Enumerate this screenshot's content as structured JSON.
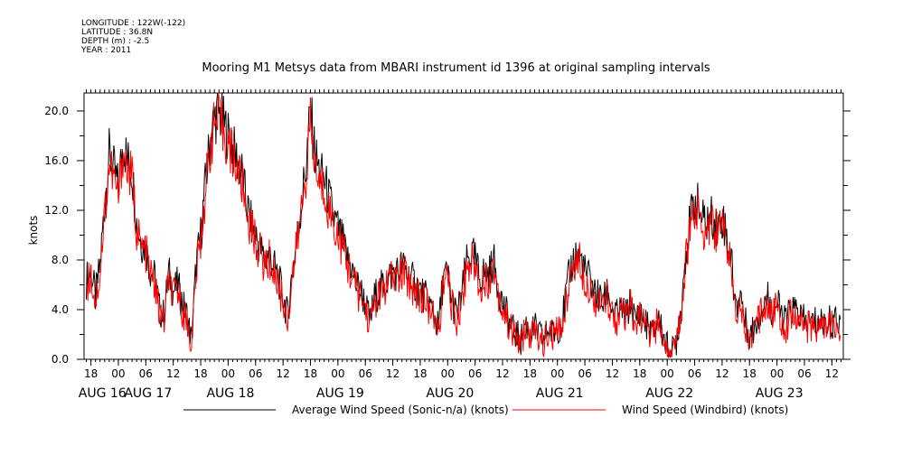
{
  "metadata_lines": [
    "LONGITUDE : 122W(-122)",
    "LATITUDE : 36.8N",
    "DEPTH (m) : -2.5",
    "YEAR : 2011"
  ],
  "colors": {
    "sonic": "#000000",
    "windbird": "#ff0000"
  },
  "chart_data": {
    "type": "line",
    "title": "Mooring M1 Metsys data from MBARI instrument id 1396 at original sampling intervals",
    "ylabel": "knots",
    "xlabel": "",
    "ylim": [
      0,
      20.5
    ],
    "yticks": [
      "0.0",
      "4.0",
      "8.0",
      "12.0",
      "16.0",
      "20.0"
    ],
    "x_unit": "hours since 2011-08-16 00:00",
    "xlim": [
      -7.5,
      110.5
    ],
    "hour_ticks": [
      {
        "x": -6,
        "label": "18"
      },
      {
        "x": 0,
        "label": "00"
      },
      {
        "x": 6,
        "label": "06"
      },
      {
        "x": 12,
        "label": "12"
      },
      {
        "x": 18,
        "label": "18"
      },
      {
        "x": 24,
        "label": "00"
      },
      {
        "x": 30,
        "label": "06"
      },
      {
        "x": 36,
        "label": "12"
      },
      {
        "x": 42,
        "label": "18"
      },
      {
        "x": 48,
        "label": "00"
      },
      {
        "x": 54,
        "label": "06"
      },
      {
        "x": 60,
        "label": "12"
      },
      {
        "x": 66,
        "label": "18"
      },
      {
        "x": 72,
        "label": "00"
      },
      {
        "x": 78,
        "label": "06"
      },
      {
        "x": 84,
        "label": "12"
      },
      {
        "x": 90,
        "label": "18"
      },
      {
        "x": 96,
        "label": "00"
      },
      {
        "x": 102,
        "label": "06"
      },
      {
        "x": 108,
        "label": "12"
      },
      {
        "x": 114,
        "label": "18"
      },
      {
        "x": 120,
        "label": "00"
      },
      {
        "x": 126,
        "label": "06"
      },
      {
        "x": 132,
        "label": "12"
      },
      {
        "x": 138,
        "label": "18"
      },
      {
        "x": 144,
        "label": "00"
      },
      {
        "x": 150,
        "label": "06"
      },
      {
        "x": 156,
        "label": "12"
      }
    ],
    "day_labels": [
      {
        "x": -3.5,
        "label": "AUG 16"
      },
      {
        "x": 6.5,
        "label": "AUG 17"
      },
      {
        "x": 24.5,
        "label": "AUG 18"
      },
      {
        "x": 48.5,
        "label": "AUG 19"
      },
      {
        "x": 72.5,
        "label": "AUG 20"
      },
      {
        "x": 96.5,
        "label": "AUG 21"
      },
      {
        "x": 120.5,
        "label": "AUG 22"
      },
      {
        "x": 144.5,
        "label": "AUG 23"
      }
    ],
    "series": [
      {
        "name": "Average Wind Speed (Sonic-n/a) (knots)",
        "color": "#000000",
        "x": [
          -7,
          -6,
          -5,
          -4,
          -3,
          -2,
          -1,
          0,
          1,
          2,
          3,
          4,
          5,
          6,
          7,
          8,
          9,
          10,
          11,
          12,
          13,
          14,
          15,
          16,
          17,
          18,
          19,
          20,
          21,
          22,
          23,
          24,
          25,
          26,
          27,
          28,
          29,
          30,
          31,
          32,
          33,
          34,
          35,
          36,
          37,
          38,
          39,
          40,
          41,
          42,
          43,
          44,
          45,
          46,
          47,
          48,
          49,
          50,
          51,
          52,
          53,
          54,
          55,
          56,
          57,
          58,
          59,
          60,
          61,
          62,
          63,
          64,
          65,
          66,
          67,
          68,
          69,
          70,
          71,
          72,
          73,
          74,
          75,
          76,
          77,
          78,
          79,
          80,
          81,
          82,
          83,
          84,
          85,
          86,
          87,
          88,
          89,
          90,
          91,
          92,
          93,
          94,
          95,
          96,
          97,
          98,
          99,
          100,
          101,
          102,
          103,
          104,
          105,
          106,
          107,
          108,
          109,
          110
        ],
        "values": [
          6.4,
          7.2,
          5.0,
          7.6,
          12.5,
          16.5,
          15.2,
          13.8,
          17.5,
          16.0,
          15.2,
          11.0,
          9.5,
          9.0,
          7.2,
          6.5,
          4.0,
          3.5,
          7.0,
          5.5,
          6.0,
          4.5,
          3.5,
          1.5,
          7.5,
          10.0,
          14.0,
          17.5,
          19.5,
          19.8,
          19.0,
          18.0,
          17.0,
          16.0,
          15.0,
          12.5,
          11.0,
          10.0,
          9.0,
          8.0,
          8.5,
          7.5,
          6.5,
          5.0,
          3.5,
          7.0,
          9.5,
          12.5,
          15.5,
          20.0,
          16.5,
          15.0,
          14.5,
          13.0,
          11.5,
          10.5,
          9.5,
          8.0,
          7.5,
          6.0,
          5.5,
          4.5,
          3.0,
          5.0,
          5.5,
          6.0,
          6.5,
          7.0,
          7.0,
          7.5,
          7.0,
          6.5,
          6.0,
          5.5,
          5.0,
          4.5,
          3.5,
          2.5,
          6.5,
          6.8,
          4.5,
          3.5,
          5.0,
          7.5,
          8.5,
          8.0,
          6.5,
          7.0,
          6.8,
          8.0,
          6.0,
          4.5,
          3.5,
          2.5,
          2.0,
          1.5,
          3.0,
          2.0,
          2.5,
          2.0,
          1.5,
          2.5,
          2.0,
          2.5,
          3.0,
          5.5,
          7.5,
          8.5,
          8.3,
          7.0,
          6.5,
          5.5,
          5.0,
          4.5,
          5.5,
          4.0,
          3.5,
          4.0
        ],
        "continued_x": [
          111,
          112,
          113,
          114,
          115,
          116,
          117,
          118,
          119,
          120,
          121,
          122,
          123,
          124,
          125,
          126,
          127,
          128,
          129,
          130,
          131,
          132,
          133,
          134,
          135,
          136,
          137,
          138,
          139,
          140,
          141,
          142,
          143,
          144,
          145,
          146,
          147,
          148,
          149,
          150,
          151,
          152,
          153,
          154,
          155,
          156,
          157,
          158
        ],
        "continued_values": [
          3.5,
          4.5,
          3.0,
          4.0,
          3.0,
          2.5,
          2.0,
          3.5,
          2.0,
          1.0,
          0.5,
          1.5,
          4.0,
          8.5,
          11.0,
          13.0,
          12.0,
          11.0,
          11.2,
          11.5,
          10.5,
          11.5,
          10.0,
          8.0,
          4.0,
          5.5,
          3.0,
          2.0,
          2.5,
          3.5,
          4.5,
          5.0,
          4.0,
          4.5,
          3.5,
          3.0,
          4.0,
          4.0,
          3.5,
          3.0,
          3.0,
          3.0,
          3.0,
          3.0,
          3.0,
          3.0,
          3.0,
          3.0
        ]
      },
      {
        "name": "Wind Speed (Windbird) (knots)",
        "color": "#ff0000",
        "x": [
          -7,
          -6,
          -5,
          -4,
          -3,
          -2,
          -1,
          0,
          1,
          2,
          3,
          4,
          5,
          6,
          7,
          8,
          9,
          10,
          11,
          12,
          13,
          14,
          15,
          16,
          17,
          18,
          19,
          20,
          21,
          22,
          23,
          24,
          25,
          26,
          27,
          28,
          29,
          30,
          31,
          32,
          33,
          34,
          35,
          36,
          37,
          38,
          39,
          40,
          41,
          42,
          43,
          44,
          45,
          46,
          47,
          48,
          49,
          50,
          51,
          52,
          53,
          54,
          55,
          56,
          57,
          58,
          59,
          60,
          61,
          62,
          63,
          64,
          65,
          66,
          67,
          68,
          69,
          70,
          71,
          72,
          73,
          74,
          75,
          76,
          77,
          78,
          79,
          80,
          81,
          82,
          83,
          84,
          85,
          86,
          87,
          88,
          89,
          90,
          91,
          92,
          93,
          94,
          95,
          96,
          97,
          98,
          99,
          100,
          101,
          102,
          103,
          104,
          105,
          106,
          107,
          108,
          109,
          110
        ],
        "values": [
          6.0,
          6.8,
          4.6,
          7.0,
          11.8,
          15.8,
          14.5,
          13.0,
          16.8,
          15.2,
          14.6,
          10.5,
          9.0,
          8.6,
          6.8,
          6.0,
          3.6,
          3.0,
          6.5,
          5.0,
          5.6,
          4.0,
          3.0,
          1.2,
          7.0,
          9.5,
          13.5,
          17.0,
          18.8,
          19.2,
          18.4,
          17.2,
          16.4,
          15.4,
          14.2,
          12.0,
          10.5,
          9.6,
          8.6,
          7.5,
          8.0,
          7.0,
          6.0,
          4.6,
          3.2,
          6.6,
          9.0,
          12.0,
          15.0,
          18.8,
          15.6,
          14.0,
          13.8,
          12.2,
          11.0,
          10.0,
          9.0,
          7.6,
          7.0,
          5.6,
          5.0,
          4.2,
          2.8,
          4.6,
          5.0,
          5.6,
          6.0,
          6.6,
          6.6,
          7.0,
          6.6,
          6.0,
          5.6,
          5.2,
          4.6,
          4.2,
          3.2,
          2.2,
          6.0,
          6.4,
          4.2,
          3.2,
          4.6,
          7.0,
          8.0,
          7.5,
          6.0,
          6.5,
          6.4,
          7.6,
          5.6,
          4.0,
          3.2,
          2.2,
          1.8,
          1.2,
          2.6,
          1.8,
          2.2,
          1.8,
          1.2,
          2.2,
          1.8,
          2.2,
          2.6,
          5.0,
          7.0,
          8.0,
          7.8,
          6.6,
          6.0,
          5.0,
          4.6,
          4.2,
          5.0,
          3.6,
          3.2,
          3.6
        ],
        "continued_x": [
          111,
          112,
          113,
          114,
          115,
          116,
          117,
          118,
          119,
          120,
          121,
          122,
          123,
          124,
          125,
          126,
          127,
          128,
          129,
          130,
          131,
          132,
          133,
          134,
          135,
          136,
          137,
          138,
          139,
          140,
          141,
          142,
          143,
          144,
          145,
          146,
          147,
          148,
          149,
          150,
          151,
          152,
          153,
          154,
          155,
          156,
          157,
          158
        ],
        "continued_values": [
          3.2,
          4.2,
          2.6,
          3.6,
          2.6,
          2.2,
          1.8,
          3.2,
          1.8,
          0.8,
          0.4,
          1.2,
          3.6,
          8.0,
          10.5,
          12.4,
          11.4,
          10.5,
          10.8,
          11.0,
          10.0,
          11.0,
          9.5,
          7.5,
          3.6,
          5.0,
          2.6,
          1.6,
          2.2,
          3.2,
          4.2,
          4.6,
          3.6,
          4.2,
          3.2,
          2.6,
          3.6,
          3.6,
          3.2,
          2.6,
          2.6,
          2.6,
          2.6,
          2.6,
          2.6,
          2.6,
          2.6,
          2.6
        ]
      }
    ],
    "legend": [
      "Average Wind Speed (Sonic-n/a) (knots)",
      "Wind Speed (Windbird) (knots)"
    ],
    "legend_position": "bottom"
  }
}
